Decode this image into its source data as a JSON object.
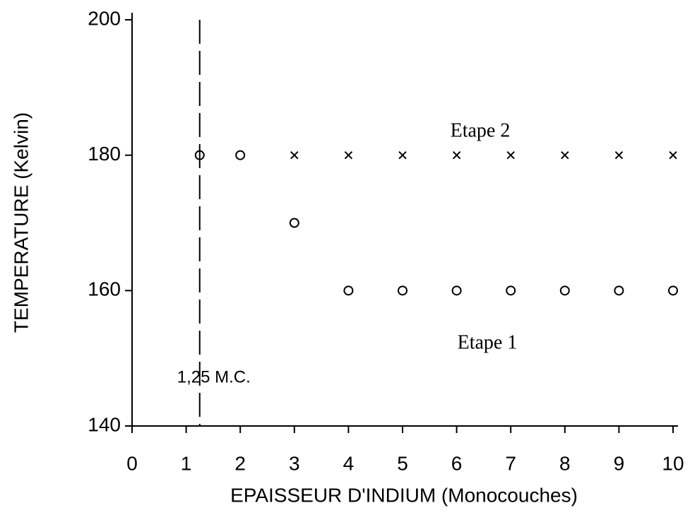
{
  "chart_data": {
    "type": "scatter",
    "xlabel": "EPAISSEUR D'INDIUM (Monocouches)",
    "ylabel": "TEMPERATURE (Kelvin)",
    "xlim": [
      0,
      10
    ],
    "xticks": [
      0,
      1,
      2,
      3,
      4,
      5,
      6,
      7,
      8,
      9,
      10
    ],
    "ylim": [
      140,
      200
    ],
    "yticks": [
      140,
      160,
      180,
      200
    ],
    "series": [
      {
        "marker": "circle",
        "color": "#000000",
        "x": [
          1.25,
          2,
          3,
          4,
          5,
          6,
          7,
          8,
          9,
          10
        ],
        "values": [
          180,
          180,
          170,
          160,
          160,
          160,
          160,
          160,
          160,
          160
        ]
      },
      {
        "marker": "cross",
        "color": "#000000",
        "x": [
          3,
          4,
          5,
          6,
          7,
          8,
          9,
          10
        ],
        "values": [
          180,
          180,
          180,
          180,
          180,
          180,
          180,
          180
        ]
      }
    ],
    "reference_line": {
      "x": 1.25,
      "label": "1,25 M.C."
    },
    "annotations": [
      "Etape 2",
      "Etape 1"
    ]
  }
}
